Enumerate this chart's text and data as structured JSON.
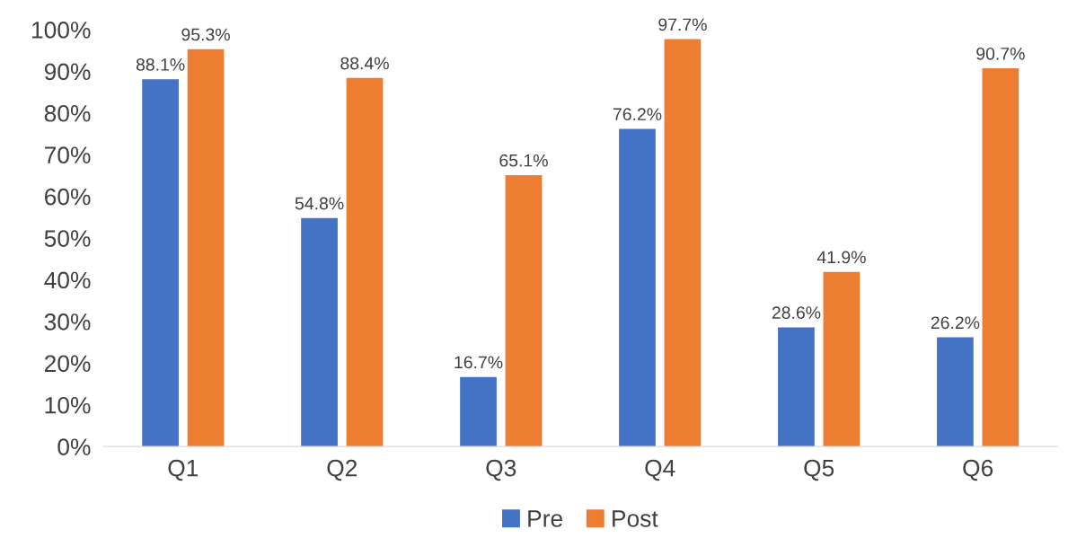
{
  "chart_data": {
    "type": "bar",
    "categories": [
      "Q1",
      "Q2",
      "Q3",
      "Q4",
      "Q5",
      "Q6"
    ],
    "series": [
      {
        "name": "Pre",
        "color": "#4472c4",
        "values": [
          88.1,
          54.8,
          16.7,
          76.2,
          28.6,
          26.2
        ],
        "value_labels": [
          "88.1%",
          "54.8%",
          "16.7%",
          "76.2%",
          "28.6%",
          "26.2%"
        ]
      },
      {
        "name": "Post",
        "color": "#ed7d31",
        "values": [
          95.3,
          88.4,
          65.1,
          97.7,
          41.9,
          90.7
        ],
        "value_labels": [
          "95.3%",
          "88.4%",
          "65.1%",
          "97.7%",
          "41.9%",
          "90.7%"
        ]
      }
    ],
    "ylim": [
      0,
      100
    ],
    "yticks": [
      {
        "value": 0,
        "label": "0%"
      },
      {
        "value": 10,
        "label": "10%"
      },
      {
        "value": 20,
        "label": "20%"
      },
      {
        "value": 30,
        "label": "30%"
      },
      {
        "value": 40,
        "label": "40%"
      },
      {
        "value": 50,
        "label": "50%"
      },
      {
        "value": 60,
        "label": "60%"
      },
      {
        "value": 70,
        "label": "70%"
      },
      {
        "value": 80,
        "label": "80%"
      },
      {
        "value": 90,
        "label": "90%"
      },
      {
        "value": 100,
        "label": "100%"
      }
    ],
    "grid": false,
    "legend": "bottom"
  }
}
